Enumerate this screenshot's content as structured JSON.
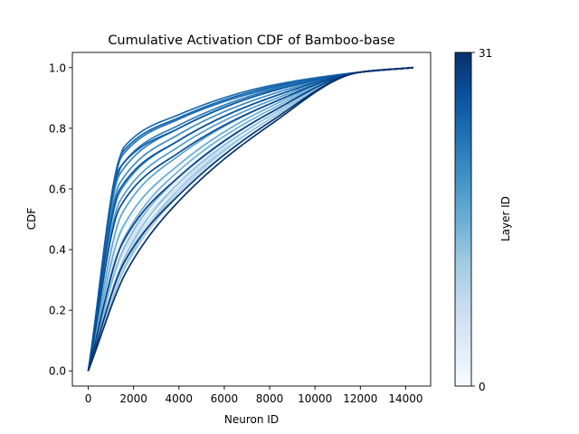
{
  "chart_data": {
    "type": "line",
    "title": "Cumulative Activation CDF of Bamboo-base",
    "xlabel": "Neuron ID",
    "ylabel": "CDF",
    "xlim": [
      -700,
      15100
    ],
    "ylim": [
      -0.05,
      1.05
    ],
    "xticks": [
      0,
      2000,
      4000,
      6000,
      8000,
      10000,
      12000,
      14000
    ],
    "xtick_labels": [
      "0",
      "2000",
      "4000",
      "6000",
      "8000",
      "10000",
      "12000",
      "14000"
    ],
    "yticks": [
      0.0,
      0.2,
      0.4,
      0.6,
      0.8,
      1.0
    ],
    "ytick_labels": [
      "0.0",
      "0.2",
      "0.4",
      "0.6",
      "0.8",
      "1.0"
    ],
    "grid": false,
    "x_max": 14336,
    "layer_count": 32,
    "layer_profiles": [
      {
        "layer": 0,
        "knee_x": 1100,
        "knee_cdf": 0.5,
        "cdf_at_4000": 0.7,
        "cdf_at_8000": 0.88
      },
      {
        "layer": 1,
        "knee_x": 1200,
        "knee_cdf": 0.48,
        "cdf_at_4000": 0.69,
        "cdf_at_8000": 0.87
      },
      {
        "layer": 2,
        "knee_x": 1300,
        "knee_cdf": 0.45,
        "cdf_at_4000": 0.67,
        "cdf_at_8000": 0.86
      },
      {
        "layer": 3,
        "knee_x": 1300,
        "knee_cdf": 0.43,
        "cdf_at_4000": 0.66,
        "cdf_at_8000": 0.86
      },
      {
        "layer": 4,
        "knee_x": 1400,
        "knee_cdf": 0.42,
        "cdf_at_4000": 0.64,
        "cdf_at_8000": 0.85
      },
      {
        "layer": 5,
        "knee_x": 1400,
        "knee_cdf": 0.4,
        "cdf_at_4000": 0.63,
        "cdf_at_8000": 0.85
      },
      {
        "layer": 6,
        "knee_x": 1500,
        "knee_cdf": 0.39,
        "cdf_at_4000": 0.62,
        "cdf_at_8000": 0.84
      },
      {
        "layer": 7,
        "knee_x": 1500,
        "knee_cdf": 0.38,
        "cdf_at_4000": 0.61,
        "cdf_at_8000": 0.84
      },
      {
        "layer": 8,
        "knee_x": 1600,
        "knee_cdf": 0.37,
        "cdf_at_4000": 0.6,
        "cdf_at_8000": 0.83
      },
      {
        "layer": 9,
        "knee_x": 1600,
        "knee_cdf": 0.36,
        "cdf_at_4000": 0.59,
        "cdf_at_8000": 0.83
      },
      {
        "layer": 10,
        "knee_x": 1700,
        "knee_cdf": 0.36,
        "cdf_at_4000": 0.59,
        "cdf_at_8000": 0.83
      },
      {
        "layer": 11,
        "knee_x": 1700,
        "knee_cdf": 0.35,
        "cdf_at_4000": 0.58,
        "cdf_at_8000": 0.82
      },
      {
        "layer": 12,
        "knee_x": 1800,
        "knee_cdf": 0.37,
        "cdf_at_4000": 0.6,
        "cdf_at_8000": 0.83
      },
      {
        "layer": 13,
        "knee_x": 1700,
        "knee_cdf": 0.39,
        "cdf_at_4000": 0.62,
        "cdf_at_8000": 0.84
      },
      {
        "layer": 14,
        "knee_x": 1600,
        "knee_cdf": 0.41,
        "cdf_at_4000": 0.64,
        "cdf_at_8000": 0.85
      },
      {
        "layer": 15,
        "knee_x": 1600,
        "knee_cdf": 0.44,
        "cdf_at_4000": 0.66,
        "cdf_at_8000": 0.86
      },
      {
        "layer": 16,
        "knee_x": 1500,
        "knee_cdf": 0.47,
        "cdf_at_4000": 0.68,
        "cdf_at_8000": 0.87
      },
      {
        "layer": 17,
        "knee_x": 1500,
        "knee_cdf": 0.52,
        "cdf_at_4000": 0.71,
        "cdf_at_8000": 0.88
      },
      {
        "layer": 18,
        "knee_x": 1400,
        "knee_cdf": 0.56,
        "cdf_at_4000": 0.74,
        "cdf_at_8000": 0.89
      },
      {
        "layer": 19,
        "knee_x": 1400,
        "knee_cdf": 0.59,
        "cdf_at_4000": 0.76,
        "cdf_at_8000": 0.9
      },
      {
        "layer": 20,
        "knee_x": 1400,
        "knee_cdf": 0.62,
        "cdf_at_4000": 0.78,
        "cdf_at_8000": 0.91
      },
      {
        "layer": 21,
        "knee_x": 1400,
        "knee_cdf": 0.65,
        "cdf_at_4000": 0.8,
        "cdf_at_8000": 0.92
      },
      {
        "layer": 22,
        "knee_x": 1500,
        "knee_cdf": 0.68,
        "cdf_at_4000": 0.81,
        "cdf_at_8000": 0.925
      },
      {
        "layer": 23,
        "knee_x": 1500,
        "knee_cdf": 0.71,
        "cdf_at_4000": 0.83,
        "cdf_at_8000": 0.93
      },
      {
        "layer": 24,
        "knee_x": 1600,
        "knee_cdf": 0.74,
        "cdf_at_4000": 0.845,
        "cdf_at_8000": 0.94
      },
      {
        "layer": 25,
        "knee_x": 1500,
        "knee_cdf": 0.72,
        "cdf_at_4000": 0.835,
        "cdf_at_8000": 0.935
      },
      {
        "layer": 26,
        "knee_x": 1400,
        "knee_cdf": 0.67,
        "cdf_at_4000": 0.8,
        "cdf_at_8000": 0.92
      },
      {
        "layer": 27,
        "knee_x": 1400,
        "knee_cdf": 0.6,
        "cdf_at_4000": 0.76,
        "cdf_at_8000": 0.9
      },
      {
        "layer": 28,
        "knee_x": 1400,
        "knee_cdf": 0.54,
        "cdf_at_4000": 0.72,
        "cdf_at_8000": 0.88
      },
      {
        "layer": 29,
        "knee_x": 1500,
        "knee_cdf": 0.42,
        "cdf_at_4000": 0.64,
        "cdf_at_8000": 0.85
      },
      {
        "layer": 30,
        "knee_x": 1600,
        "knee_cdf": 0.36,
        "cdf_at_4000": 0.58,
        "cdf_at_8000": 0.82
      },
      {
        "layer": 31,
        "knee_x": 1700,
        "knee_cdf": 0.33,
        "cdf_at_4000": 0.56,
        "cdf_at_8000": 0.81
      }
    ],
    "colorbar": {
      "label": "Layer ID",
      "min_label": "0",
      "max_label": "31",
      "colormap": "Blues",
      "color_stops": [
        "#f7fbff",
        "#deebf7",
        "#c6dbef",
        "#9ecae1",
        "#6baed6",
        "#4292c6",
        "#2171b5",
        "#08519c",
        "#08306b"
      ]
    }
  }
}
